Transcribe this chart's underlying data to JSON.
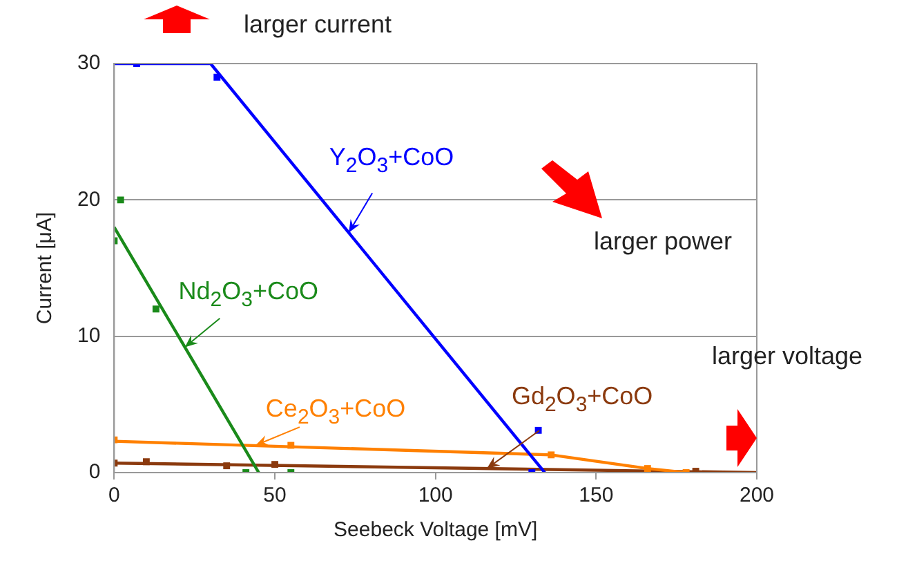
{
  "chart_data": {
    "type": "scatter",
    "xlabel": "Seebeck Voltage [mV]",
    "ylabel": "Current [μA]",
    "xlim": [
      0,
      200
    ],
    "xticks": [
      0,
      50,
      100,
      150,
      200
    ],
    "ylim": [
      0,
      30
    ],
    "yticks": [
      0,
      10,
      20,
      30
    ],
    "grid": "y",
    "legend": false,
    "marker": "square",
    "line_style": "solid",
    "series": [
      {
        "type": "scatter",
        "color": "#0000ff",
        "x": [
          7,
          32,
          130,
          132
        ],
        "values": [
          30,
          29,
          0,
          3.1
        ]
      },
      {
        "type": "line",
        "marker": "none",
        "color": "#0000ff",
        "x": [
          0,
          30,
          134
        ],
        "values": [
          30,
          30,
          0
        ]
      },
      {
        "type": "scatter",
        "color": "#1a8a1a",
        "x": [
          0,
          2,
          13,
          41,
          55
        ],
        "values": [
          17,
          20,
          12,
          0,
          0
        ]
      },
      {
        "type": "line",
        "marker": "none",
        "color": "#1a8a1a",
        "x": [
          0,
          45
        ],
        "values": [
          18,
          0
        ]
      },
      {
        "type": "scatter",
        "color": "#ff8000",
        "x": [
          0,
          55,
          136,
          166,
          178
        ],
        "values": [
          2.4,
          2,
          1.3,
          0.3,
          0
        ]
      },
      {
        "type": "line",
        "marker": "none",
        "color": "#ff8000",
        "x": [
          0,
          136,
          166,
          178
        ],
        "values": [
          2.3,
          1.3,
          0.3,
          0
        ]
      },
      {
        "type": "scatter",
        "color": "#8b3a0e",
        "x": [
          0,
          10,
          35,
          50,
          181
        ],
        "values": [
          0.7,
          0.8,
          0.5,
          0.6,
          0.1
        ]
      },
      {
        "type": "line",
        "marker": "none",
        "color": "#8b3a0e",
        "x": [
          0,
          200
        ],
        "values": [
          0.7,
          0
        ]
      }
    ],
    "annotations": [
      {
        "text": "Y$_{2}$O$_{3}$+CoO",
        "x": 73,
        "y": 17.6
      },
      {
        "text": "Nd$_{2}$O$_{3}$+CoO",
        "x": 22,
        "y": 9.2
      },
      {
        "text": "Ce$_{2}$O$_{3}$+CoO",
        "x": 44,
        "y": 2
      },
      {
        "text": "Gd$_{2}$O$_{3}$+CoO",
        "x": 116,
        "y": 0.3
      },
      "larger current",
      "larger power",
      "larger voltage"
    ]
  }
}
